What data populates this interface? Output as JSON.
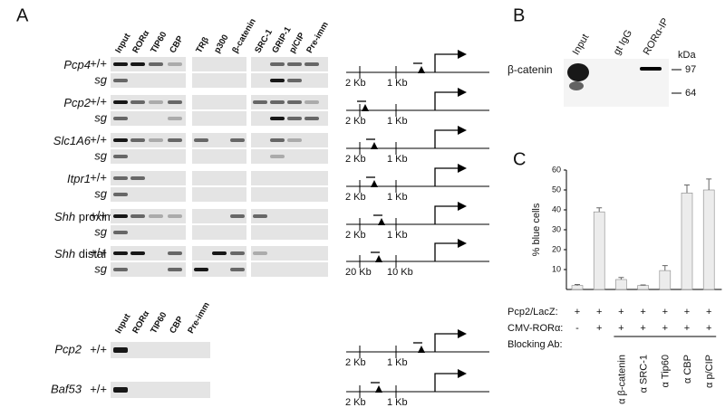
{
  "panel_a": {
    "label": "A",
    "upper": {
      "lanes": [
        "Input",
        "RORα",
        "TIP60",
        "CBP",
        "TRβ",
        "p300",
        "β-catenin",
        "SRC-1",
        "GRIP-1",
        "p/CIP",
        "Pre-imm"
      ],
      "rows": [
        {
          "gene": "Pcp4",
          "genotypes": [
            "+/+",
            "sg"
          ],
          "scale": [
            "2 Kb",
            "1 Kb"
          ]
        },
        {
          "gene": "Pcp2",
          "genotypes": [
            "+/+",
            "sg"
          ],
          "scale": [
            "2 Kb",
            "1 Kb"
          ]
        },
        {
          "gene": "Slc1A6",
          "genotypes": [
            "+/+",
            "sg"
          ],
          "scale": [
            "2 Kb",
            "1 Kb"
          ]
        },
        {
          "gene": "Itpr1",
          "genotypes": [
            "+/+",
            "sg"
          ],
          "scale": [
            "2 Kb",
            "1 Kb"
          ]
        },
        {
          "gene": "Shh",
          "suffix": "proximal",
          "genotypes": [
            "+/+",
            "sg"
          ],
          "scale": [
            "2 Kb",
            "1 Kb"
          ]
        },
        {
          "gene": "Shh",
          "suffix": "distal",
          "genotypes": [
            "+/+",
            "sg"
          ],
          "scale": [
            "20 Kb",
            "10 Kb"
          ]
        }
      ]
    },
    "lower": {
      "lanes": [
        "Input",
        "RORα",
        "TIP60",
        "CBP",
        "Pre-imm"
      ],
      "rows": [
        {
          "gene": "Pcp2",
          "genotype": "+/+",
          "scale": [
            "2 Kb",
            "1 Kb"
          ]
        },
        {
          "gene": "Baf53",
          "genotype": "+/+",
          "scale": [
            "2 Kb",
            "1 Kb"
          ]
        }
      ]
    }
  },
  "panel_b": {
    "label": "B",
    "lanes": [
      "Input",
      "gt IgG",
      "RORα-IP"
    ],
    "protein": "β-catenin",
    "unit": "kDa",
    "markers": [
      97,
      64
    ]
  },
  "chart_data": {
    "type": "bar",
    "label": "C",
    "ylabel": "% blue cells",
    "categories": [
      null,
      null,
      "α β-catenin",
      "α SRC-1",
      "α Tip60",
      "α CBP",
      "α p/CIP"
    ],
    "values": [
      2,
      39,
      5,
      2,
      9.5,
      48.5,
      50
    ],
    "errors": [
      0.5,
      2,
      1,
      0.3,
      2.5,
      4,
      5.5
    ],
    "color": "#ececec",
    "ylim": [
      0,
      60
    ],
    "yticks": [
      10,
      20,
      30,
      40,
      50,
      60
    ],
    "rows": [
      {
        "label": "Pcp2/LacZ:",
        "marks": [
          "+",
          "+",
          "+",
          "+",
          "+",
          "+",
          "+"
        ]
      },
      {
        "label": "CMV-RORα:",
        "marks": [
          "-",
          "+",
          "+",
          "+",
          "+",
          "+",
          "+"
        ]
      },
      {
        "label": "Blocking Ab:"
      }
    ]
  }
}
